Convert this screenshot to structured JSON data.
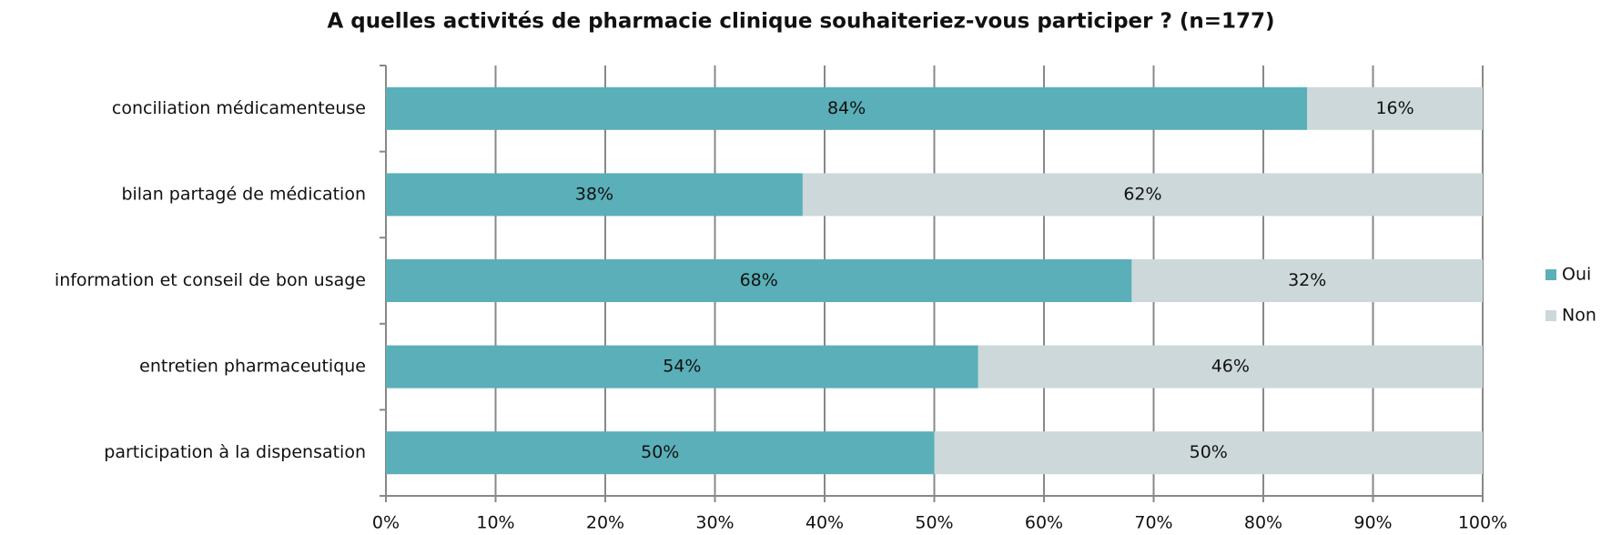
{
  "chart_data": {
    "type": "stacked_barh",
    "title": "A quelles activités de pharmacie clinique souhaiteriez-vous participer ? (n=177)",
    "categories": [
      "conciliation médicamenteuse",
      "bilan partagé de médication",
      "information et conseil de bon usage",
      "entretien pharmaceutique",
      "participation à la dispensation"
    ],
    "series": [
      {
        "name": "Oui",
        "color": "#5aafb8",
        "values": [
          84,
          38,
          68,
          54,
          50
        ],
        "value_labels": [
          "84%",
          "38%",
          "68%",
          "54%",
          "50%"
        ]
      },
      {
        "name": "Non",
        "color": "#ccd8da",
        "values": [
          16,
          62,
          32,
          46,
          50
        ],
        "value_labels": [
          "16%",
          "62%",
          "32%",
          "46%",
          "50%"
        ]
      }
    ],
    "xlim": [
      0,
      100
    ],
    "xticks": [
      {
        "value": 0,
        "label": "0%"
      },
      {
        "value": 10,
        "label": "10%"
      },
      {
        "value": 20,
        "label": "20%"
      },
      {
        "value": 30,
        "label": "30%"
      },
      {
        "value": 40,
        "label": "40%"
      },
      {
        "value": 50,
        "label": "50%"
      },
      {
        "value": 60,
        "label": "60%"
      },
      {
        "value": 70,
        "label": "70%"
      },
      {
        "value": 80,
        "label": "80%"
      },
      {
        "value": 90,
        "label": "90%"
      },
      {
        "value": 100,
        "label": "100%"
      }
    ],
    "grid": true,
    "legend": "right"
  }
}
